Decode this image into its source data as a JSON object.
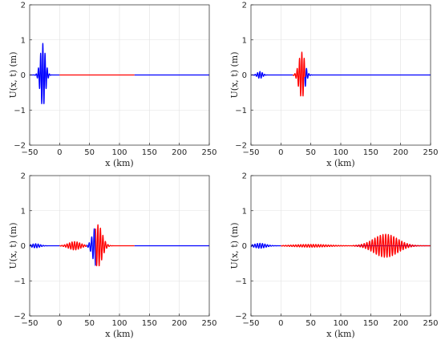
{
  "figure": {
    "colors": {
      "incident": "#0000ff",
      "transmitted": "#ff0000",
      "axes": "#262626",
      "grid": "#e1e1e1"
    }
  },
  "chart_data": [
    {
      "type": "line",
      "panel": "top-left",
      "xlabel": "x (km)",
      "ylabel": "U(x, t) (m)",
      "xlim": [
        -50,
        250
      ],
      "ylim": [
        -2,
        2
      ],
      "xticks": [
        -50,
        0,
        50,
        100,
        150,
        200,
        250
      ],
      "yticks": [
        -2,
        -1,
        0,
        1,
        2
      ],
      "grid": true,
      "series": [
        {
          "color": "#0000ff",
          "segments": [
            [
              -50,
              0
            ],
            [
              125,
              250
            ]
          ],
          "packets": [
            {
              "center": -28,
              "width": 6,
              "amp": 0.9,
              "k": 1.7,
              "phase": 0,
              "lo": 0,
              "hi": 0
            }
          ]
        },
        {
          "color": "#ff0000",
          "segments": [
            [
              0,
              125
            ]
          ],
          "packets": []
        }
      ]
    },
    {
      "type": "line",
      "panel": "top-right",
      "xlabel": "x (km)",
      "ylabel": "U(x, t) (m)",
      "xlim": [
        -50,
        250
      ],
      "ylim": [
        -2,
        2
      ],
      "xticks": [
        -50,
        0,
        50,
        100,
        150,
        200,
        250
      ],
      "yticks": [
        -2,
        -1,
        0,
        1,
        2
      ],
      "grid": true,
      "series": [
        {
          "color": "#0000ff",
          "segments": [
            [
              -50,
              20
            ],
            [
              40,
              250
            ]
          ],
          "packets": [
            {
              "center": -35,
              "width": 6,
              "amp": 0.1,
              "k": 1.6,
              "phase": 0,
              "lo": 0,
              "hi": 0
            },
            {
              "center": 35,
              "width": 7,
              "amp": 0.65,
              "k": 1.6,
              "phase": 0,
              "lo": 40,
              "hi": 70
            }
          ]
        },
        {
          "color": "#ff0000",
          "segments": [
            [
              20,
              40
            ]
          ],
          "packets": [
            {
              "center": 35,
              "width": 7,
              "amp": 0.65,
              "k": 1.6,
              "phase": 0,
              "lo": 0,
              "hi": 0
            }
          ]
        }
      ]
    },
    {
      "type": "line",
      "panel": "bottom-left",
      "xlabel": "x (km)",
      "ylabel": "U(x, t) (m)",
      "xlim": [
        -50,
        250
      ],
      "ylim": [
        -2,
        2
      ],
      "xticks": [
        -50,
        0,
        50,
        100,
        150,
        200,
        250
      ],
      "yticks": [
        -2,
        -1,
        0,
        1,
        2
      ],
      "grid": true,
      "series": [
        {
          "color": "#0000ff",
          "segments": [
            [
              -50,
              0
            ],
            [
              45,
              60
            ],
            [
              125,
              250
            ]
          ],
          "packets": [
            {
              "center": -40,
              "width": 10,
              "amp": 0.06,
              "k": 1.5,
              "phase": 0,
              "lo": 0,
              "hi": 0
            },
            {
              "center": 62,
              "width": 9,
              "amp": 0.6,
              "k": 1.5,
              "phase": 0,
              "lo": 45,
              "hi": 62
            }
          ]
        },
        {
          "color": "#ff0000",
          "segments": [
            [
              0,
              45
            ],
            [
              60,
              125
            ]
          ],
          "packets": [
            {
              "center": 25,
              "width": 14,
              "amp": 0.12,
              "k": 1.5,
              "phase": 0,
              "lo": 0,
              "hi": 45
            },
            {
              "center": 64,
              "width": 10,
              "amp": 0.6,
              "k": 1.5,
              "phase": 0,
              "lo": 58,
              "hi": 125
            }
          ]
        }
      ]
    },
    {
      "type": "line",
      "panel": "bottom-right",
      "xlabel": "x (km)",
      "ylabel": "U(x, t) (m)",
      "xlim": [
        -50,
        250
      ],
      "ylim": [
        -2,
        2
      ],
      "xticks": [
        -50,
        0,
        50,
        100,
        150,
        200,
        250
      ],
      "yticks": [
        -2,
        -1,
        0,
        1,
        2
      ],
      "grid": true,
      "series": [
        {
          "color": "#0000ff",
          "segments": [
            [
              -50,
              0
            ],
            [
              125,
              250
            ]
          ],
          "packets": [
            {
              "center": -35,
              "width": 14,
              "amp": 0.07,
              "k": 1.5,
              "phase": 0,
              "lo": 0,
              "hi": 0
            }
          ]
        },
        {
          "color": "#ff0000",
          "segments": [
            [
              0,
              125
            ],
            [
              120,
              250
            ]
          ],
          "packets": [
            {
              "center": 50,
              "width": 40,
              "amp": 0.04,
              "k": 1.5,
              "phase": 0,
              "lo": 0,
              "hi": 118
            },
            {
              "center": 175,
              "width": 28,
              "amp": 0.33,
              "k": 1.4,
              "phase": 0,
              "lo": 118,
              "hi": 250
            }
          ]
        }
      ]
    }
  ]
}
